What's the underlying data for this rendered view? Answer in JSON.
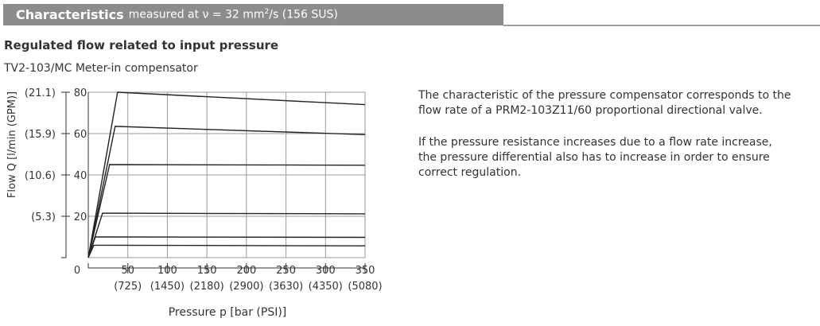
{
  "header": {
    "title": "Characteristics",
    "subtitle_prefix": "measured at ν = 32 mm",
    "subtitle_sup": "2",
    "subtitle_suffix": "/s (156 SUS)"
  },
  "section_title": "Regulated flow related to input pressure",
  "caption": "TV2-103/MC Meter-in compensator",
  "description": {
    "paragraph1": "The characteristic of the pressure compensator corresponds to the flow rate of a PRM2-103Z11/60 proportional directional valve.",
    "paragraph2_line1": "If the pressure resistance increases due to a flow rate increase,",
    "paragraph2_line2": "the pressure differential also has to increase in order to ensure correct regulation."
  },
  "chart_data": {
    "type": "line",
    "title": "",
    "xlabel": "Pressure p [bar (PSI)]",
    "ylabel": "Flow Q [l/min (GPM)]",
    "xlim": [
      0,
      350
    ],
    "ylim": [
      0,
      80
    ],
    "grid": true,
    "origin_label": "0",
    "x_ticks": [
      {
        "value": 50,
        "label": "50",
        "sub": "(725)"
      },
      {
        "value": 100,
        "label": "100",
        "sub": "(1450)"
      },
      {
        "value": 150,
        "label": "150",
        "sub": "(2180)"
      },
      {
        "value": 200,
        "label": "200",
        "sub": "(2900)"
      },
      {
        "value": 250,
        "label": "250",
        "sub": "(3630)"
      },
      {
        "value": 300,
        "label": "300",
        "sub": "(4350)"
      },
      {
        "value": 350,
        "label": "350",
        "sub": "(5080)"
      }
    ],
    "y_ticks": [
      {
        "value": 20,
        "label": "20",
        "sub": "(5.3)"
      },
      {
        "value": 40,
        "label": "40",
        "sub": "(10.6)"
      },
      {
        "value": 60,
        "label": "60",
        "sub": "(15.9)"
      },
      {
        "value": 80,
        "label": "80",
        "sub": "(21.1)"
      }
    ],
    "series": [
      {
        "x": [
          0,
          37,
          350
        ],
        "y": [
          0,
          80,
          74
        ]
      },
      {
        "x": [
          0,
          34,
          350
        ],
        "y": [
          0,
          63.5,
          59.5
        ]
      },
      {
        "x": [
          0,
          27,
          350
        ],
        "y": [
          0,
          45,
          44.7
        ]
      },
      {
        "x": [
          0,
          18,
          350
        ],
        "y": [
          0,
          21.5,
          21.2
        ]
      },
      {
        "x": [
          0,
          9,
          350
        ],
        "y": [
          0,
          10,
          9.8
        ]
      },
      {
        "x": [
          0,
          7,
          350
        ],
        "y": [
          0,
          6,
          5.7
        ]
      }
    ]
  }
}
